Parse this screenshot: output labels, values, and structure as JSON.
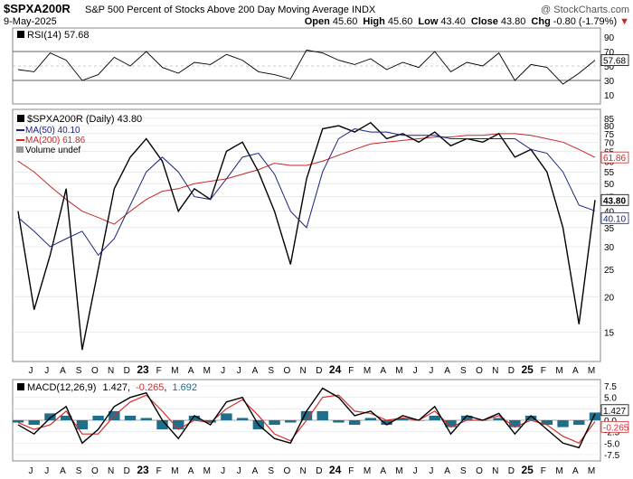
{
  "header": {
    "symbol": "$SPXA200R",
    "description": "S&P 500 Percent of Stocks Above 200 Day Moving Average INDX",
    "copyright": "@ StockCharts.com",
    "date": "9-May-2025",
    "ohlc": [
      {
        "label": "Open",
        "value": "45.60"
      },
      {
        "label": "High",
        "value": "45.60"
      },
      {
        "label": "Low",
        "value": "43.40"
      },
      {
        "label": "Close",
        "value": "43.80"
      },
      {
        "label": "Chg",
        "value": "-0.80 (-1.79%)"
      }
    ],
    "chg_arrow": "▼"
  },
  "rsi_panel": {
    "label": "RSI(14) 57.68",
    "current": "57.68",
    "axis_labels": [
      "90",
      "70",
      "50",
      "30",
      "10"
    ]
  },
  "price_panel": {
    "legend": {
      "main": "$SPXA200R (Daily) 43.80",
      "ma50": "MA(50) 40.10",
      "ma200": "MA(200) 61.86",
      "volume": "Volume undef"
    },
    "tags": {
      "ma200": "61.86",
      "close": "43.80",
      "ma50": "40.10"
    },
    "axis_labels": [
      "85",
      "80",
      "75",
      "70",
      "65",
      "60",
      "55",
      "50",
      "45",
      "40",
      "35",
      "30",
      "25",
      "20",
      "15"
    ]
  },
  "macd_panel": {
    "label_prefix": "MACD(12,26,9)",
    "macd_value": "1.427",
    "signal_value": "-0.265",
    "hist_value": "1.692",
    "tags": {
      "macd": "1.427",
      "signal": "-0.265"
    },
    "axis_labels": [
      "7.5",
      "5.0",
      "2.5",
      "0.0",
      "-2.5",
      "-5.0",
      "-7.5"
    ]
  },
  "x_axis": {
    "labels": [
      "J",
      "J",
      "A",
      "S",
      "O",
      "N",
      "D",
      "23",
      "F",
      "M",
      "A",
      "M",
      "J",
      "J",
      "A",
      "S",
      "O",
      "N",
      "D",
      "24",
      "F",
      "M",
      "A",
      "M",
      "J",
      "J",
      "A",
      "S",
      "O",
      "N",
      "D",
      "25",
      "F",
      "M",
      "A",
      "M"
    ]
  },
  "colors": {
    "price": "#000000",
    "ma50": "#1a237e",
    "ma200": "#c62828",
    "macd": "#000000",
    "signal": "#d32f2f",
    "histogram": "#1f6e8c"
  },
  "chart_data": [
    {
      "type": "line",
      "name": "RSI(14)",
      "ylim": [
        0,
        100
      ],
      "reference_lines": [
        30,
        70
      ],
      "x": [
        "2022-05",
        "2022-06",
        "2022-07",
        "2022-08",
        "2022-09",
        "2022-10",
        "2022-11",
        "2022-12",
        "2023-01",
        "2023-02",
        "2023-03",
        "2023-04",
        "2023-05",
        "2023-06",
        "2023-07",
        "2023-08",
        "2023-09",
        "2023-10",
        "2023-11",
        "2023-12",
        "2024-01",
        "2024-02",
        "2024-03",
        "2024-04",
        "2024-05",
        "2024-06",
        "2024-07",
        "2024-08",
        "2024-09",
        "2024-10",
        "2024-11",
        "2024-12",
        "2025-01",
        "2025-02",
        "2025-03",
        "2025-04",
        "2025-05"
      ],
      "values": [
        45,
        42,
        68,
        58,
        30,
        38,
        62,
        50,
        70,
        48,
        40,
        55,
        52,
        66,
        58,
        42,
        38,
        32,
        72,
        68,
        58,
        52,
        60,
        45,
        55,
        48,
        70,
        42,
        55,
        50,
        68,
        30,
        52,
        48,
        25,
        40,
        58
      ]
    },
    {
      "type": "line",
      "title": "$SPXA200R (Daily)",
      "yscale": "log",
      "ylim": [
        12,
        90
      ],
      "x": [
        "2022-05",
        "2022-06",
        "2022-07",
        "2022-08",
        "2022-09",
        "2022-10",
        "2022-11",
        "2022-12",
        "2023-01",
        "2023-02",
        "2023-03",
        "2023-04",
        "2023-05",
        "2023-06",
        "2023-07",
        "2023-08",
        "2023-09",
        "2023-10",
        "2023-11",
        "2023-12",
        "2024-01",
        "2024-02",
        "2024-03",
        "2024-04",
        "2024-05",
        "2024-06",
        "2024-07",
        "2024-08",
        "2024-09",
        "2024-10",
        "2024-11",
        "2024-12",
        "2025-01",
        "2025-02",
        "2025-03",
        "2025-04",
        "2025-05"
      ],
      "series": [
        {
          "name": "$SPXA200R",
          "values": [
            40,
            18,
            28,
            48,
            13,
            25,
            48,
            62,
            72,
            60,
            40,
            48,
            44,
            65,
            70,
            55,
            40,
            26,
            52,
            78,
            80,
            76,
            82,
            72,
            75,
            70,
            76,
            68,
            72,
            70,
            75,
            62,
            66,
            55,
            35,
            16,
            43.8
          ]
        },
        {
          "name": "MA(50)",
          "values": [
            38,
            34,
            30,
            32,
            34,
            28,
            32,
            42,
            55,
            62,
            55,
            45,
            44,
            52,
            62,
            64,
            54,
            40,
            35,
            55,
            72,
            78,
            76,
            76,
            74,
            74,
            74,
            72,
            72,
            72,
            72,
            72,
            66,
            64,
            55,
            42,
            40.1
          ]
        },
        {
          "name": "MA(200)",
          "values": [
            60,
            55,
            49,
            44,
            40,
            38,
            36,
            40,
            44,
            47,
            48,
            50,
            51,
            52,
            54,
            56,
            59,
            58,
            58,
            60,
            63,
            66,
            69,
            70,
            71,
            72,
            73,
            73,
            74,
            74,
            75,
            75,
            74,
            72,
            70,
            66,
            61.86
          ]
        }
      ]
    },
    {
      "type": "line",
      "title": "MACD(12,26,9)",
      "ylim": [
        -8.5,
        8.5
      ],
      "x": [
        "2022-05",
        "2022-06",
        "2022-07",
        "2022-08",
        "2022-09",
        "2022-10",
        "2022-11",
        "2022-12",
        "2023-01",
        "2023-02",
        "2023-03",
        "2023-04",
        "2023-05",
        "2023-06",
        "2023-07",
        "2023-08",
        "2023-09",
        "2023-10",
        "2023-11",
        "2023-12",
        "2024-01",
        "2024-02",
        "2024-03",
        "2024-04",
        "2024-05",
        "2024-06",
        "2024-07",
        "2024-08",
        "2024-09",
        "2024-10",
        "2024-11",
        "2024-12",
        "2025-01",
        "2025-02",
        "2025-03",
        "2025-04",
        "2025-05"
      ],
      "series": [
        {
          "name": "MACD",
          "values": [
            -1,
            -3,
            0.5,
            3,
            -5,
            -2,
            3,
            5,
            6,
            0,
            -4,
            1,
            -1,
            4,
            5,
            -1,
            -4,
            -5,
            2,
            7,
            5,
            1,
            2,
            -1,
            1,
            0,
            3,
            -3,
            1,
            0,
            1.5,
            -3,
            1,
            -2,
            -5,
            -6,
            1.427
          ]
        },
        {
          "name": "Signal",
          "values": [
            -0.5,
            -2,
            -1,
            2,
            -3,
            -3,
            1,
            4,
            5.5,
            2,
            -2,
            0,
            -0.5,
            2.5,
            4.5,
            1,
            -3,
            -4.5,
            0,
            5,
            5.5,
            2,
            1.5,
            0,
            0.5,
            0,
            2,
            -1.5,
            0,
            0,
            1,
            -1.5,
            0,
            -1,
            -3.5,
            -5,
            -0.265
          ]
        },
        {
          "name": "Histogram",
          "values": [
            -0.5,
            -1,
            1.5,
            1,
            -2,
            1,
            2,
            1,
            0.5,
            -2,
            -2,
            1,
            -0.5,
            1.5,
            0.5,
            -2,
            -1,
            -0.5,
            2,
            2,
            -0.5,
            -1,
            0.5,
            -1,
            0.5,
            0,
            1,
            -1.5,
            1,
            0,
            0.5,
            -1.5,
            1,
            -1,
            -1.5,
            -1,
            1.692
          ]
        }
      ]
    }
  ]
}
